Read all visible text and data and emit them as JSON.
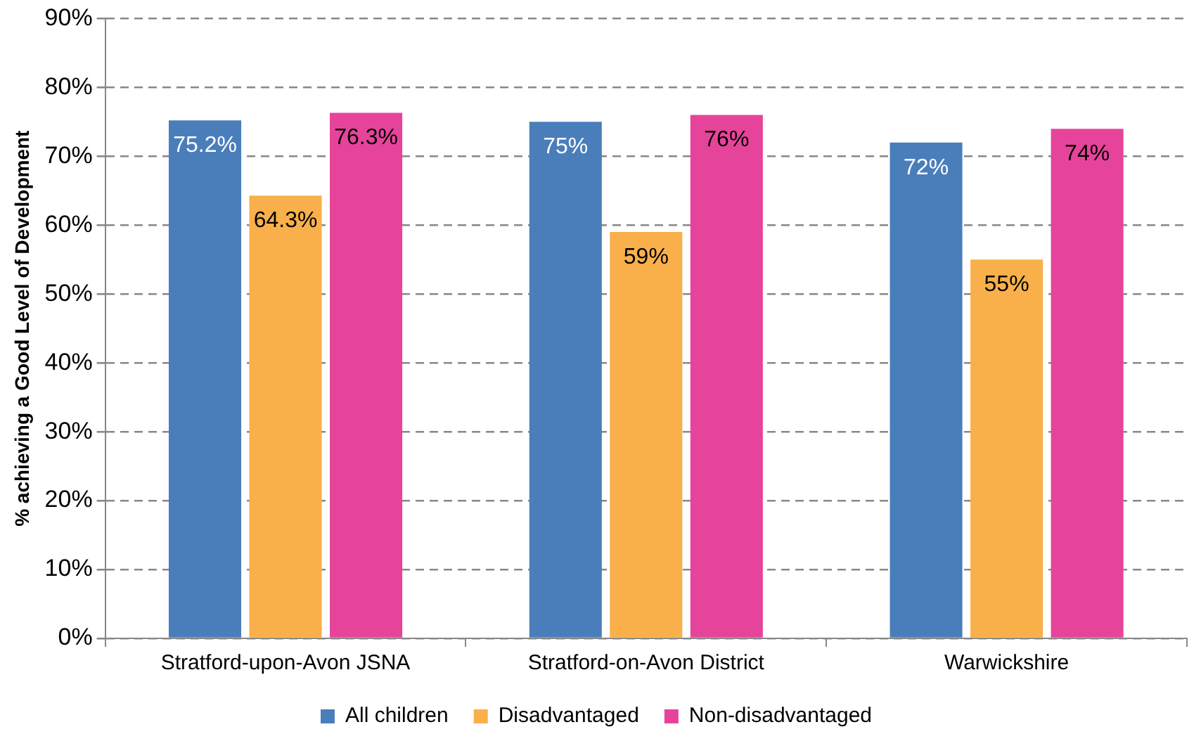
{
  "chart_data": {
    "type": "bar",
    "ylabel": "% achieving a Good Level of Development",
    "categories": [
      "Stratford-upon-Avon JSNA",
      "Stratford-on-Avon District",
      "Warwickshire"
    ],
    "series": [
      {
        "name": "All children",
        "color": "#4a7ebb",
        "values": [
          75.2,
          75,
          72
        ],
        "value_labels": [
          "75.2%",
          "75%",
          "72%"
        ]
      },
      {
        "name": "Disadvantaged",
        "color": "#f9b04a",
        "values": [
          64.3,
          59,
          55
        ],
        "value_labels": [
          "64.3%",
          "59%",
          "55%"
        ]
      },
      {
        "name": "Non-disadvantaged",
        "color": "#e6449a",
        "values": [
          76.3,
          76,
          74
        ],
        "value_labels": [
          "76.3%",
          "76%",
          "74%"
        ]
      }
    ],
    "ylim": [
      0,
      90
    ],
    "yticks": [
      {
        "value": 0,
        "label": "0%"
      },
      {
        "value": 10,
        "label": "10%"
      },
      {
        "value": 20,
        "label": "20%"
      },
      {
        "value": 30,
        "label": "30%"
      },
      {
        "value": 40,
        "label": "40%"
      },
      {
        "value": 50,
        "label": "50%"
      },
      {
        "value": 60,
        "label": "60%"
      },
      {
        "value": 70,
        "label": "70%"
      },
      {
        "value": 80,
        "label": "80%"
      },
      {
        "value": 90,
        "label": "90%"
      }
    ],
    "grid": "y",
    "line_style": "dashed",
    "legend": "bottom"
  }
}
